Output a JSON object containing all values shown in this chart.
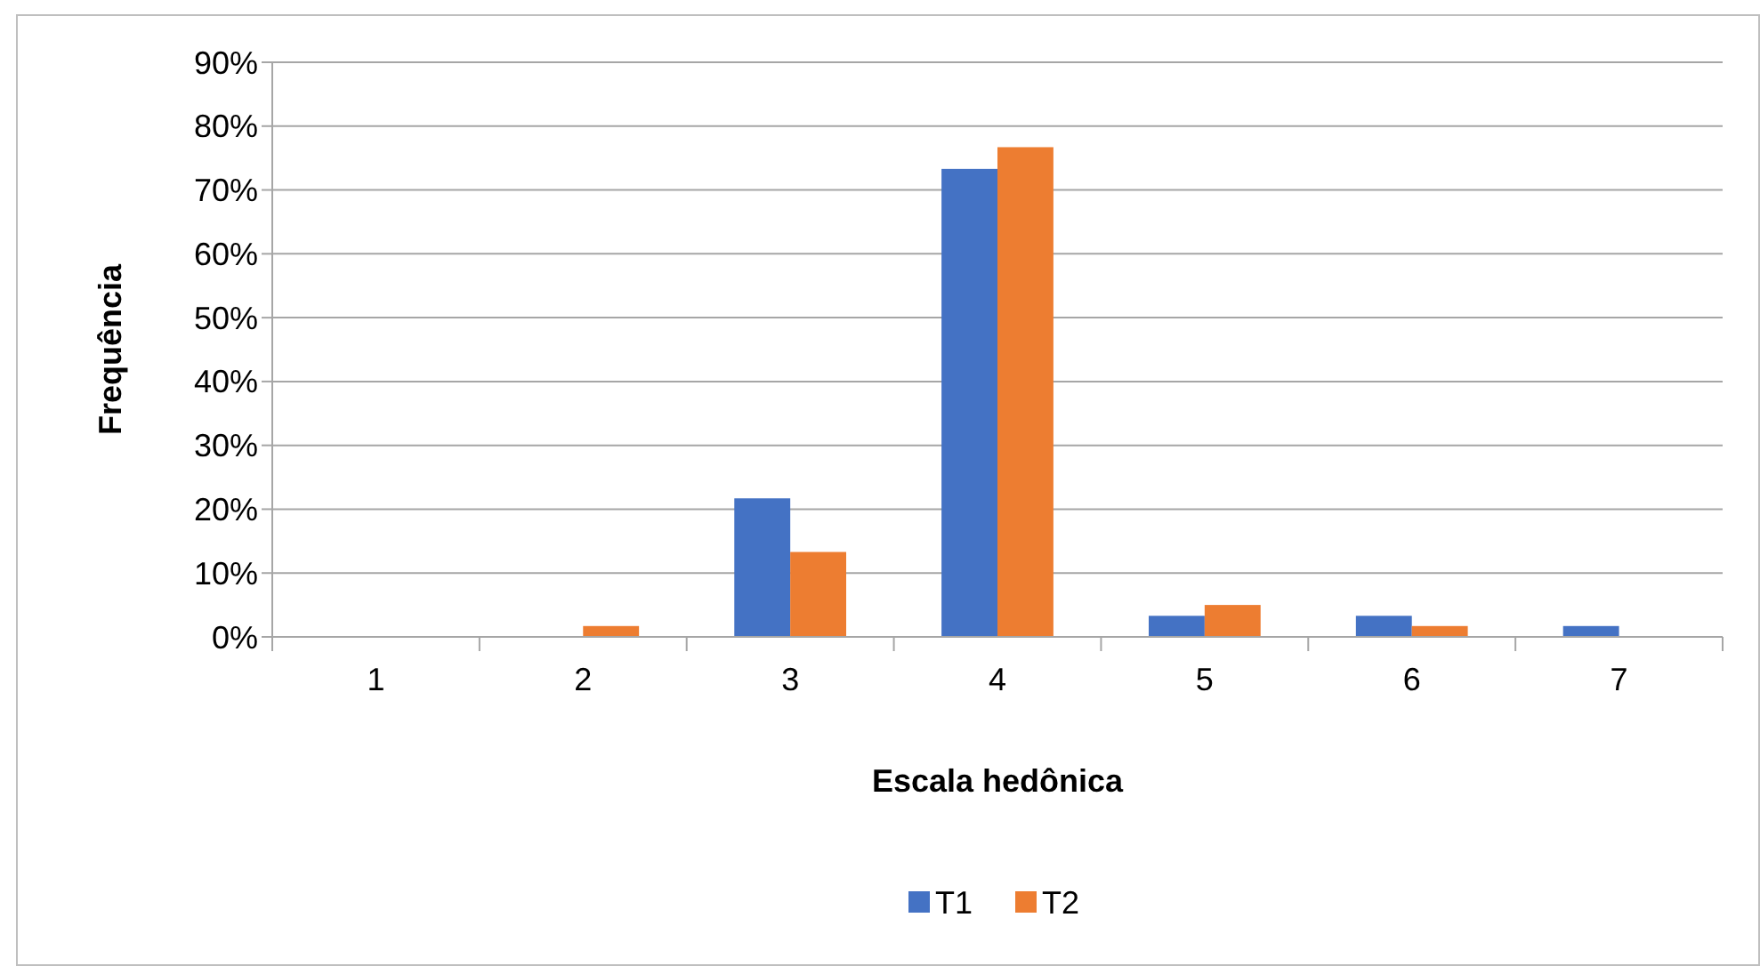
{
  "chart_data": {
    "type": "bar",
    "xlabel": "Escala hedônica",
    "ylabel": "Frequência",
    "categories": [
      "1",
      "2",
      "3",
      "4",
      "5",
      "6",
      "7"
    ],
    "series": [
      {
        "name": "T1",
        "color": "#4472c4",
        "values": [
          0,
          0,
          21.7,
          73.3,
          3.3,
          3.3,
          1.7
        ]
      },
      {
        "name": "T2",
        "color": "#ed7d31",
        "values": [
          0,
          1.7,
          13.3,
          76.7,
          5,
          1.7,
          0
        ]
      }
    ],
    "ylim": [
      0,
      90
    ],
    "yticks": [
      {
        "value": 0,
        "label": "0%"
      },
      {
        "value": 10,
        "label": "10%"
      },
      {
        "value": 20,
        "label": "20%"
      },
      {
        "value": 30,
        "label": "30%"
      },
      {
        "value": 40,
        "label": "40%"
      },
      {
        "value": 50,
        "label": "50%"
      },
      {
        "value": 60,
        "label": "60%"
      },
      {
        "value": 70,
        "label": "70%"
      },
      {
        "value": 80,
        "label": "80%"
      },
      {
        "value": 90,
        "label": "90%"
      }
    ],
    "grid": "y",
    "legend": "bottom"
  }
}
